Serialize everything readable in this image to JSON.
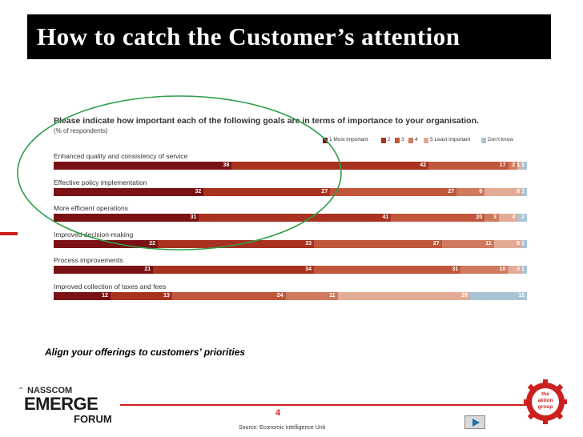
{
  "slide": {
    "title": "How to catch the Customer’s attention",
    "tagline": "Align your offerings to customers’ priorities",
    "page_number": "4",
    "source": "Source: Economic intelligence Unit",
    "brand_left": {
      "nasscom": "NASSCOM",
      "emerge": "EMERGE",
      "forum": "FORUM"
    },
    "brand_right": {
      "line1": "the",
      "line2": "aktion",
      "line3": "group"
    },
    "colors": {
      "title_bg": "#000000",
      "accent_red": "#cc1f1f",
      "ellipse": "#2e9e4a"
    }
  },
  "chart_data": {
    "type": "bar",
    "stacked": true,
    "orientation": "horizontal",
    "title": "Please indicate how important each of the following goals are in terms of importance to your organisation.",
    "subtitle": "(% of respondents)",
    "legend_position": "top-right",
    "series": [
      {
        "name": "1 Most important",
        "color": "#7a1214"
      },
      {
        "name": "2",
        "color": "#a8321f"
      },
      {
        "name": "3",
        "color": "#c0573a"
      },
      {
        "name": "4",
        "color": "#cf7a5e"
      },
      {
        "name": "5 Least important",
        "color": "#e3ab96"
      },
      {
        "name": "Don't know",
        "color": "#a9c4d6"
      }
    ],
    "categories": [
      {
        "label": "Enhanced quality and consistency of service",
        "values": [
          38,
          42,
          17,
          2,
          1,
          1
        ]
      },
      {
        "label": "Effective policy implementation",
        "values": [
          32,
          27,
          27,
          6,
          8,
          1
        ]
      },
      {
        "label": "More efficient operations",
        "values": [
          31,
          41,
          20,
          3,
          4,
          2
        ]
      },
      {
        "label": "Improved decision-making",
        "values": [
          22,
          33,
          27,
          11,
          6,
          1
        ]
      },
      {
        "label": "Process improvements",
        "values": [
          21,
          34,
          31,
          10,
          3,
          1
        ]
      },
      {
        "label": "Improved collection of taxes and fees",
        "values": [
          12,
          13,
          24,
          11,
          28,
          12
        ]
      }
    ]
  }
}
